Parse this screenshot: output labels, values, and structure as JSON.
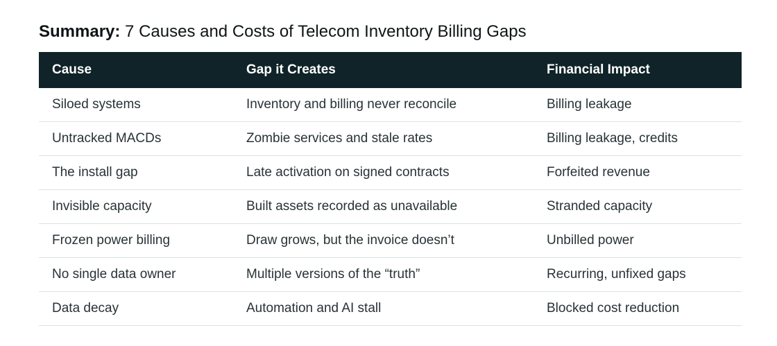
{
  "title": {
    "label": "Summary:",
    "text": "7 Causes and Costs of Telecom Inventory Billing Gaps"
  },
  "table": {
    "headers": [
      "Cause",
      "Gap it Creates",
      "Financial Impact"
    ],
    "rows": [
      [
        "Siloed systems",
        "Inventory and billing never reconcile",
        "Billing leakage"
      ],
      [
        "Untracked MACDs",
        "Zombie services and stale rates",
        "Billing leakage, credits"
      ],
      [
        "The install gap",
        "Late activation on signed contracts",
        "Forfeited revenue"
      ],
      [
        "Invisible capacity",
        "Built assets recorded as unavailable",
        "Stranded capacity"
      ],
      [
        "Frozen power billing",
        "Draw grows, but the invoice doesn’t",
        "Unbilled power"
      ],
      [
        "No single data owner",
        "Multiple versions of the “truth”",
        "Recurring, unfixed gaps"
      ],
      [
        "Data decay",
        "Automation and AI stall",
        "Blocked cost reduction"
      ]
    ]
  },
  "colors": {
    "header_bg": "#0f2328",
    "header_text": "#ffffff",
    "row_divider": "#dde1e3",
    "body_text": "#283235"
  }
}
